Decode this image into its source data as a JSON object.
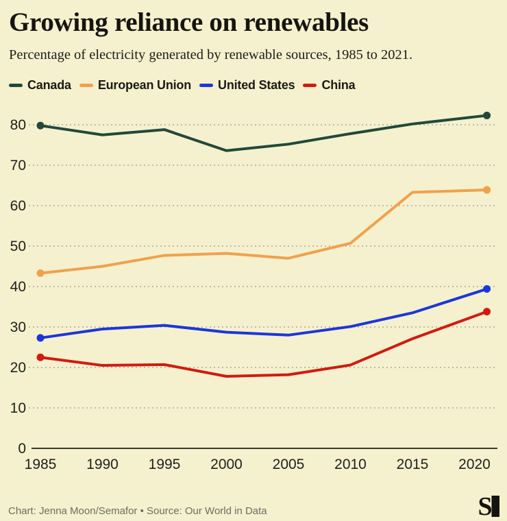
{
  "header": {
    "title": "Growing reliance on renewables",
    "subtitle": "Percentage of electricity generated by renewable sources, 1985 to 2021."
  },
  "legend": [
    {
      "label": "Canada",
      "color": "#24483a"
    },
    {
      "label": "European Union",
      "color": "#f0a14c"
    },
    {
      "label": "United States",
      "color": "#1d36d9"
    },
    {
      "label": "China",
      "color": "#d11b10"
    }
  ],
  "chart_data": {
    "type": "line",
    "title": "Growing reliance on renewables",
    "xlabel": "",
    "ylabel": "",
    "x": [
      1985,
      1990,
      1995,
      2000,
      2005,
      2010,
      2015,
      2021
    ],
    "x_tick_labels": [
      "1985",
      "1990",
      "1995",
      "2000",
      "2005",
      "2010",
      "2015",
      "2020"
    ],
    "x_tick_years": [
      1985,
      1990,
      1995,
      2000,
      2005,
      2010,
      2015,
      2020
    ],
    "y_ticks": [
      0,
      10,
      20,
      30,
      40,
      50,
      60,
      70,
      80
    ],
    "ylim": [
      0,
      85
    ],
    "xlim": [
      1985,
      2022
    ],
    "grid": "dotted-horizontal",
    "legend_position": "top",
    "endpoint_markers": true,
    "series": [
      {
        "name": "Canada",
        "color": "#24483a",
        "values": [
          79.8,
          77.5,
          78.8,
          73.6,
          75.2,
          77.8,
          80.2,
          82.3
        ]
      },
      {
        "name": "European Union",
        "color": "#f0a14c",
        "values": [
          43.3,
          45.0,
          47.7,
          48.2,
          47.0,
          50.7,
          63.3,
          63.9
        ]
      },
      {
        "name": "United States",
        "color": "#1d36d9",
        "values": [
          27.3,
          29.5,
          30.4,
          28.7,
          28.0,
          30.1,
          33.5,
          39.4
        ]
      },
      {
        "name": "China",
        "color": "#d11b10",
        "values": [
          22.5,
          20.5,
          20.7,
          17.8,
          18.2,
          20.6,
          27.1,
          33.8
        ]
      }
    ]
  },
  "footer": {
    "credit": "Chart: Jenna Moon/Semafor • Source: Our World in Data",
    "logo": "semafor-logo"
  },
  "colors": {
    "background": "#f5f1cf",
    "text": "#1c1b15",
    "grid": "#aca793",
    "axis": "#3a372c",
    "footer_text": "#6e6b5c",
    "logo": "#14130e"
  }
}
